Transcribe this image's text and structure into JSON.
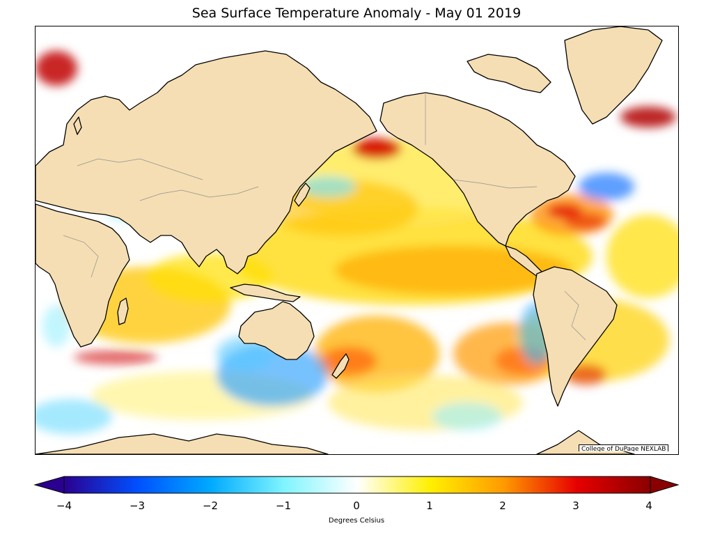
{
  "title": "Sea Surface Temperature Anomaly - May 01 2019",
  "credit": "College of DuPage NEXLAB",
  "colorbar": {
    "label": "Degrees Celsius",
    "min": -4,
    "max": 4,
    "ticks": [
      "−4",
      "−3",
      "−2",
      "−1",
      "0",
      "1",
      "2",
      "3",
      "4"
    ],
    "extend": "both",
    "colors": {
      "neg4": "#2a0090",
      "neg3": "#0050ff",
      "neg2": "#00aaff",
      "neg1": "#7ff5ff",
      "zero": "#ffffff",
      "pos1": "#fff000",
      "pos2": "#ff9a00",
      "pos3": "#e60000",
      "pos4": "#8a0000"
    }
  },
  "map": {
    "land_color": "#f5deb3",
    "coastline_color": "#000000",
    "border_color": "#909090"
  }
}
